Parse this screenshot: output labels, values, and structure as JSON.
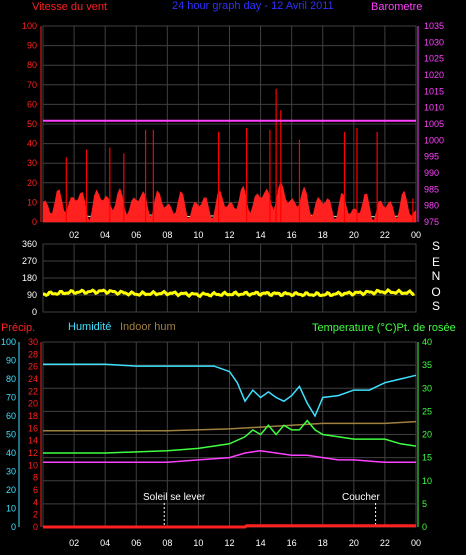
{
  "colors": {
    "wind": "#ff2020",
    "gust": "#ff0000",
    "windavg": "#ffff40",
    "wind_base": "#c8ffc8",
    "baro": "#ff40ff",
    "title": "#3030ff",
    "grid": "#404040",
    "axis_white": "#ffffff",
    "dir": "#ffff00",
    "rain": "#ff2020",
    "hum": "#40e0ff",
    "inhum": "#a08040",
    "temp": "#40ff40",
    "dew": "#ff40ff",
    "temp_ticks": "#40ff40",
    "dew_ticks": "#ff40ff",
    "label_wind": "#ff2020",
    "label_baro": "#ff40ff",
    "label_hum": "#40e0ff",
    "label_inhum": "#a08040",
    "label_temp": "#40ff40",
    "label_rain": "#ff2020"
  },
  "header": {
    "wind_label": "Vitesse du vent",
    "title": "24 hour graph day - 12 Avril 2011",
    "baro_label": "Barometre"
  },
  "time_ticks": [
    "02",
    "04",
    "06",
    "08",
    "10",
    "12",
    "14",
    "16",
    "18",
    "20",
    "22",
    "00"
  ],
  "panel1": {
    "wind_ticks": [
      "0",
      "10",
      "20",
      "30",
      "40",
      "50",
      "60",
      "70",
      "80",
      "90",
      "100"
    ],
    "baro_ticks": [
      "975",
      "980",
      "985",
      "990",
      "995",
      "1000",
      "1005",
      "1010",
      "1015",
      "1020",
      "1025",
      "1030",
      "1035"
    ]
  },
  "panel2": {
    "dir_ticks": [
      "0",
      "90",
      "180",
      "270",
      "360"
    ],
    "compass": [
      "S",
      "E",
      "N",
      "O",
      "S"
    ]
  },
  "panel3": {
    "precip_label": "Précip.",
    "hum_label": "Humidité",
    "inhum_label": "Indoor hum",
    "temp_label": "Temperature (°C)Pt. de rosée",
    "rain_ticks": [
      "0",
      "2",
      "4",
      "6",
      "8",
      "10",
      "12",
      "14",
      "16",
      "18",
      "20",
      "22",
      "24",
      "26",
      "28",
      "30"
    ],
    "hum_ticks": [
      "0",
      "10",
      "20",
      "30",
      "40",
      "50",
      "60",
      "70",
      "80",
      "90",
      "100"
    ],
    "temp_ticks": [
      "0",
      "5",
      "10",
      "15",
      "20",
      "25",
      "30",
      "35",
      "40"
    ],
    "sunrise_label": "Soleil se lever",
    "sunset_label": "Coucher"
  },
  "chart_data": [
    {
      "type": "line",
      "title": "24 hour graph day - 12 Avril 2011",
      "x_unit": "hour",
      "x_range": [
        0,
        24
      ],
      "ylim_left": [
        0,
        100
      ],
      "ylim_right": [
        975,
        1035
      ],
      "series": [
        {
          "name": "Barometre",
          "axis": "right",
          "x": [
            0,
            2,
            4,
            6,
            8,
            10,
            12,
            14,
            16,
            18,
            20,
            22,
            24
          ],
          "values": [
            1006,
            1006,
            1006,
            1006,
            1006,
            1006,
            1006,
            1006,
            1006,
            1006,
            1006,
            1006,
            1006
          ]
        },
        {
          "name": "Vitesse du vent",
          "axis": "left",
          "x": [
            0,
            1,
            2,
            3,
            4,
            5,
            6,
            7,
            8,
            9,
            10,
            11,
            12,
            13,
            14,
            15,
            16,
            17,
            18,
            19,
            20,
            21,
            22,
            23,
            24
          ],
          "values": [
            10,
            9,
            12,
            8,
            13,
            9,
            11,
            10,
            9,
            8,
            8,
            9,
            10,
            11,
            12,
            14,
            12,
            10,
            9,
            8,
            7,
            8,
            7,
            9,
            6
          ]
        }
      ],
      "gust_peaks": [
        {
          "x": 1.5,
          "y": 33
        },
        {
          "x": 2.8,
          "y": 37
        },
        {
          "x": 4.3,
          "y": 38
        },
        {
          "x": 5.2,
          "y": 35
        },
        {
          "x": 6.6,
          "y": 47
        },
        {
          "x": 7.1,
          "y": 47
        },
        {
          "x": 11.3,
          "y": 46
        },
        {
          "x": 13.1,
          "y": 48
        },
        {
          "x": 14.6,
          "y": 47
        },
        {
          "x": 15.0,
          "y": 68
        },
        {
          "x": 15.3,
          "y": 57
        },
        {
          "x": 16.5,
          "y": 42
        },
        {
          "x": 19.4,
          "y": 46
        },
        {
          "x": 20.2,
          "y": 48
        },
        {
          "x": 21.5,
          "y": 46
        },
        {
          "x": 23.8,
          "y": 12
        }
      ]
    },
    {
      "type": "scatter",
      "title": "",
      "ylim": [
        0,
        360
      ],
      "series": [
        {
          "name": "",
          "x": [
            0,
            2,
            4,
            6,
            8,
            10,
            12,
            14,
            16,
            18,
            20,
            22,
            24
          ],
          "values": [
            95,
            105,
            110,
            95,
            100,
            92,
            95,
            98,
            95,
            92,
            100,
            108,
            100
          ]
        }
      ]
    },
    {
      "type": "line",
      "title": "",
      "ylim_rain": [
        0,
        30
      ],
      "ylim_hum": [
        0,
        100
      ],
      "ylim_temp": [
        0,
        40
      ],
      "series": [
        {
          "name": "Humidité",
          "axis": "hum",
          "x": [
            0,
            2,
            4,
            6,
            7,
            8,
            9,
            10,
            11,
            12,
            12.5,
            13,
            13.5,
            14,
            14.5,
            15,
            15.5,
            16,
            16.5,
            17,
            17.5,
            18,
            19,
            20,
            21,
            22,
            23,
            24
          ],
          "values": [
            88,
            88,
            88,
            87,
            87,
            87,
            87,
            87,
            87,
            84,
            78,
            68,
            74,
            70,
            73,
            70,
            68,
            71,
            76,
            67,
            60,
            70,
            71,
            74,
            74,
            78,
            80,
            82
          ]
        },
        {
          "name": "Indoor hum",
          "axis": "hum",
          "x": [
            0,
            4,
            8,
            12,
            14,
            16,
            18,
            20,
            22,
            24
          ],
          "values": [
            52,
            52,
            52,
            53,
            54,
            55,
            56,
            56,
            56,
            57
          ]
        },
        {
          "name": "Temperature (°C)",
          "axis": "temp",
          "x": [
            0,
            4,
            8,
            10,
            12,
            13,
            13.5,
            14,
            14.5,
            15,
            15.5,
            16,
            16.5,
            17,
            17.5,
            18,
            19,
            20,
            21,
            22,
            23,
            24
          ],
          "values": [
            16,
            16,
            16.5,
            17,
            18,
            19.5,
            21,
            20,
            22,
            20,
            22,
            21,
            21,
            23,
            21,
            20,
            19.5,
            19,
            19,
            19,
            18,
            17.5
          ]
        },
        {
          "name": "Pt. de rosée",
          "axis": "temp",
          "x": [
            0,
            4,
            8,
            10,
            12,
            13,
            14,
            15,
            16,
            17,
            18,
            19,
            20,
            22,
            24
          ],
          "values": [
            14,
            14,
            14,
            14.5,
            15,
            16,
            16.5,
            16,
            15.5,
            15.5,
            15,
            14.5,
            14.5,
            14,
            14
          ]
        },
        {
          "name": "Précip.",
          "axis": "rain",
          "x": [
            0,
            13,
            13.1,
            24
          ],
          "values": [
            0,
            0,
            0.2,
            0.2
          ]
        }
      ],
      "sunrise_hour": 7.8,
      "sunset_hour": 21.4
    }
  ]
}
